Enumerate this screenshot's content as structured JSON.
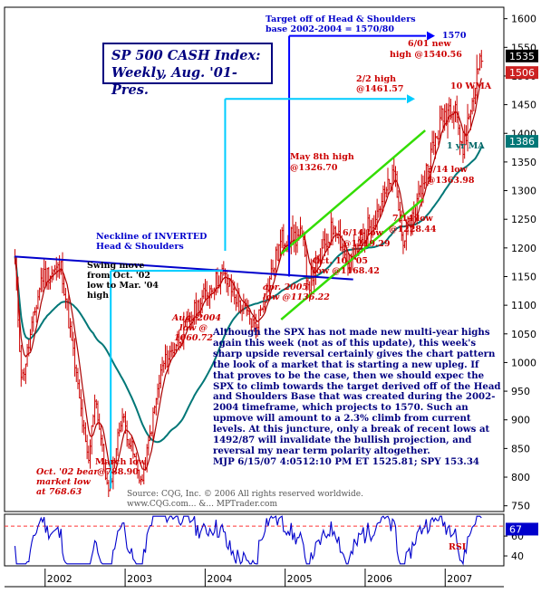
{
  "title": {
    "line1": "SP 500 CASH Index:",
    "line2": "Weekly, Aug. '01-Pres."
  },
  "commentary": "Although the SPX has not made new multi-year highs again this week (not as of this update), this week's sharp upside reversal certainly gives the chart pattern the look of a market that is starting a new upleg. If that proves to be the case, then we should expec the SPX to climb towards the target derived off of the Head and Shoulders Base that was created during the 2002-2004 timeframe, which projects to 1570. Such an upmove will amount to a 2.3% climb from current levels. At this juncture, only a break of recent lows at 1492/87 will invalidate the bullish projection, and reversal my near term polarity altogether.",
  "signature": "MJP 6/15/07  4:05",
  "timestamp": "12:10 PM ET  1525.81; SPY 153.34",
  "source": {
    "line1": "Source: CQG, Inc. © 2006 All rights reserved worldwide.",
    "line2": "www.CQG.com... &... MPTrader.com"
  },
  "colors": {
    "price_bar": "#cc0000",
    "wma": "#aa0000",
    "ma_1yr": "#007777",
    "channel": "#33dd00",
    "neckline": "#0000cc",
    "target": "#0000ff",
    "measure": "#00ccff",
    "rsi": "#0000cc",
    "rsi_ref": "#ff3333",
    "badge_price": "#000000",
    "badge_wma": "#cc2222",
    "badge_ma": "#007777",
    "badge_rsi": "#0000cc"
  },
  "chart_data": {
    "type": "candlestick",
    "x_ticks": [
      "2002",
      "2003",
      "2004",
      "2005",
      "2006",
      "2007"
    ],
    "y_ticks": [
      750,
      800,
      850,
      900,
      950,
      1000,
      1050,
      1100,
      1150,
      1200,
      1250,
      1300,
      1350,
      1400,
      1450,
      1500,
      1550,
      1600
    ],
    "ylim": [
      740,
      1620
    ],
    "badges": {
      "price": "1535",
      "wma": "1506",
      "ma_1yr": "1386"
    },
    "key_points": [
      {
        "date": "2001-08",
        "close": 1180
      },
      {
        "date": "2001-09",
        "close": 965
      },
      {
        "date": "2001-12",
        "close": 1150
      },
      {
        "date": "2002-03",
        "close": 1165
      },
      {
        "date": "2002-07",
        "close": 820
      },
      {
        "date": "2002-08",
        "close": 945
      },
      {
        "date": "2002-10",
        "close": 768.63
      },
      {
        "date": "2002-12",
        "close": 910
      },
      {
        "date": "2003-03",
        "close": 788.9
      },
      {
        "date": "2003-06",
        "close": 990
      },
      {
        "date": "2003-12",
        "close": 1110
      },
      {
        "date": "2004-03",
        "close": 1155
      },
      {
        "date": "2004-08",
        "close": 1060.72
      },
      {
        "date": "2004-12",
        "close": 1215
      },
      {
        "date": "2005-03",
        "close": 1220
      },
      {
        "date": "2005-04",
        "close": 1136.22
      },
      {
        "date": "2005-08",
        "close": 1245
      },
      {
        "date": "2005-10",
        "close": 1168.42
      },
      {
        "date": "2006-05",
        "close": 1326.7
      },
      {
        "date": "2006-06",
        "close": 1219.29
      },
      {
        "date": "2006-07",
        "close": 1228.44
      },
      {
        "date": "2006-12",
        "close": 1425
      },
      {
        "date": "2007-02",
        "close": 1461.57
      },
      {
        "date": "2007-03",
        "close": 1363.98
      },
      {
        "date": "2007-06",
        "close": 1540.56
      },
      {
        "date": "2007-06-15",
        "close": 1525.81
      }
    ],
    "annotations": {
      "target": "Target off of Head & Shoulders",
      "target2": "base 2002-2004 = 1570/80",
      "target_value": "1570",
      "jun01_1": "6/01 new",
      "jun01_2": "high @1540.56",
      "feb02_1": "2/2 high",
      "feb02_2": "@1461.57",
      "wma": "10 WMA",
      "ma1yr": "1 yr MA",
      "mar14_1": "3/14 low",
      "mar14_2": "@1363.98",
      "may8_1": "May 8th high",
      "may8_2": "@1326.70",
      "jul14_1": "7/14 low",
      "jul14_2": "@1228.44",
      "jun14_1": "6/14 low",
      "jun14_2": "@1219.29",
      "oct10_1": "Oct. 10, '05",
      "oct10_2": "low @1168.42",
      "apr05_1": "apr. 2005",
      "apr05_2": "low @1136.22",
      "aug04_1": "Aug. 2004",
      "aug04_2": "low @",
      "aug04_3": "1060.72",
      "neck_1": "Neckline of INVERTED",
      "neck_2": "Head & Shoulders",
      "swing_1": "Swing move",
      "swing_2": "from Oct. '02",
      "swing_3": "low to Mar. '04",
      "swing_4": "high",
      "oct02_1": "Oct. '02 bear",
      "oct02_2": "market low",
      "oct02_3": "at 768.63",
      "mar03_1": "March low",
      "mar03_2": "@788.90"
    },
    "rsi": {
      "label": "RSI",
      "y_ticks": [
        40,
        60
      ],
      "badge": "67",
      "reference_level": 70,
      "ylim": [
        30,
        82
      ]
    }
  }
}
